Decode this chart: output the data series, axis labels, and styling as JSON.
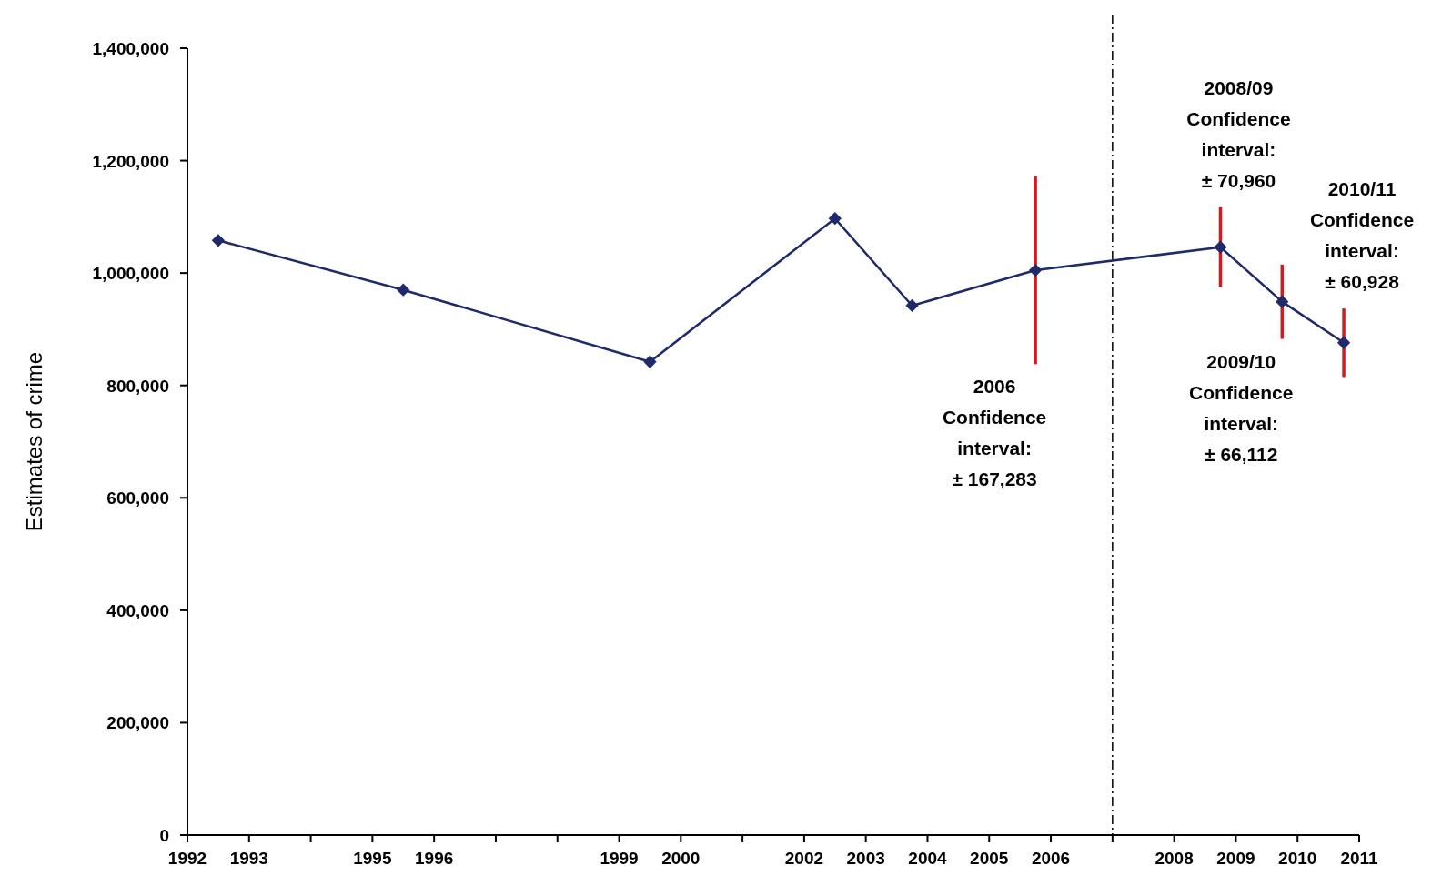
{
  "chart_data": {
    "type": "line",
    "ylabel": "Estimates of crime",
    "x": [
      1992.5,
      1995.5,
      1999.5,
      2002.5,
      2003.75,
      2005.75,
      2008.75,
      2009.75,
      2010.75
    ],
    "series": [
      {
        "color": "#1f2a6b",
        "values": [
          1058000,
          970000,
          842000,
          1097000,
          942000,
          1005000,
          1046000,
          949000,
          876000
        ],
        "errors": [
          null,
          null,
          null,
          null,
          null,
          167283,
          70960,
          66112,
          60928
        ]
      }
    ],
    "marker": "diamond",
    "line_style": "solid",
    "grid": false,
    "xlim": [
      1992,
      2011
    ],
    "xticks": [
      1992,
      1993,
      {
        "value": 1994,
        "label": null
      },
      1995,
      1996,
      {
        "value": 1997,
        "label": null
      },
      {
        "value": 1998,
        "label": null
      },
      1999,
      2000,
      {
        "value": 2001,
        "label": null
      },
      2002,
      2003,
      2004,
      2005,
      2006,
      {
        "value": 2007,
        "label": null
      },
      2008,
      2009,
      2010,
      2011
    ],
    "ylim": [
      0,
      1400000
    ],
    "yticks": [
      {
        "value": 0,
        "label": "0"
      },
      {
        "value": 200000,
        "label": "200,000"
      },
      {
        "value": 400000,
        "label": "400,000"
      },
      {
        "value": 600000,
        "label": "600,000"
      },
      {
        "value": 800000,
        "label": "800,000"
      },
      {
        "value": 1000000,
        "label": "1,000,000"
      },
      {
        "value": 1200000,
        "label": "1,200,000"
      },
      {
        "value": 1400000,
        "label": "1,400,000"
      }
    ],
    "ref_lines": [
      {
        "axis": "x",
        "value": 2007,
        "line_style": "dashed",
        "color": "#000000"
      }
    ],
    "annotations": [
      "2006\nConfidence\ninterval:\n± 167,283",
      "2008/09\nConfidence\ninterval:\n± 70,960",
      "2009/10\nConfidence\ninterval:\n± 66,112",
      "2010/11\nConfidence\ninterval:\n± 60,928"
    ]
  }
}
